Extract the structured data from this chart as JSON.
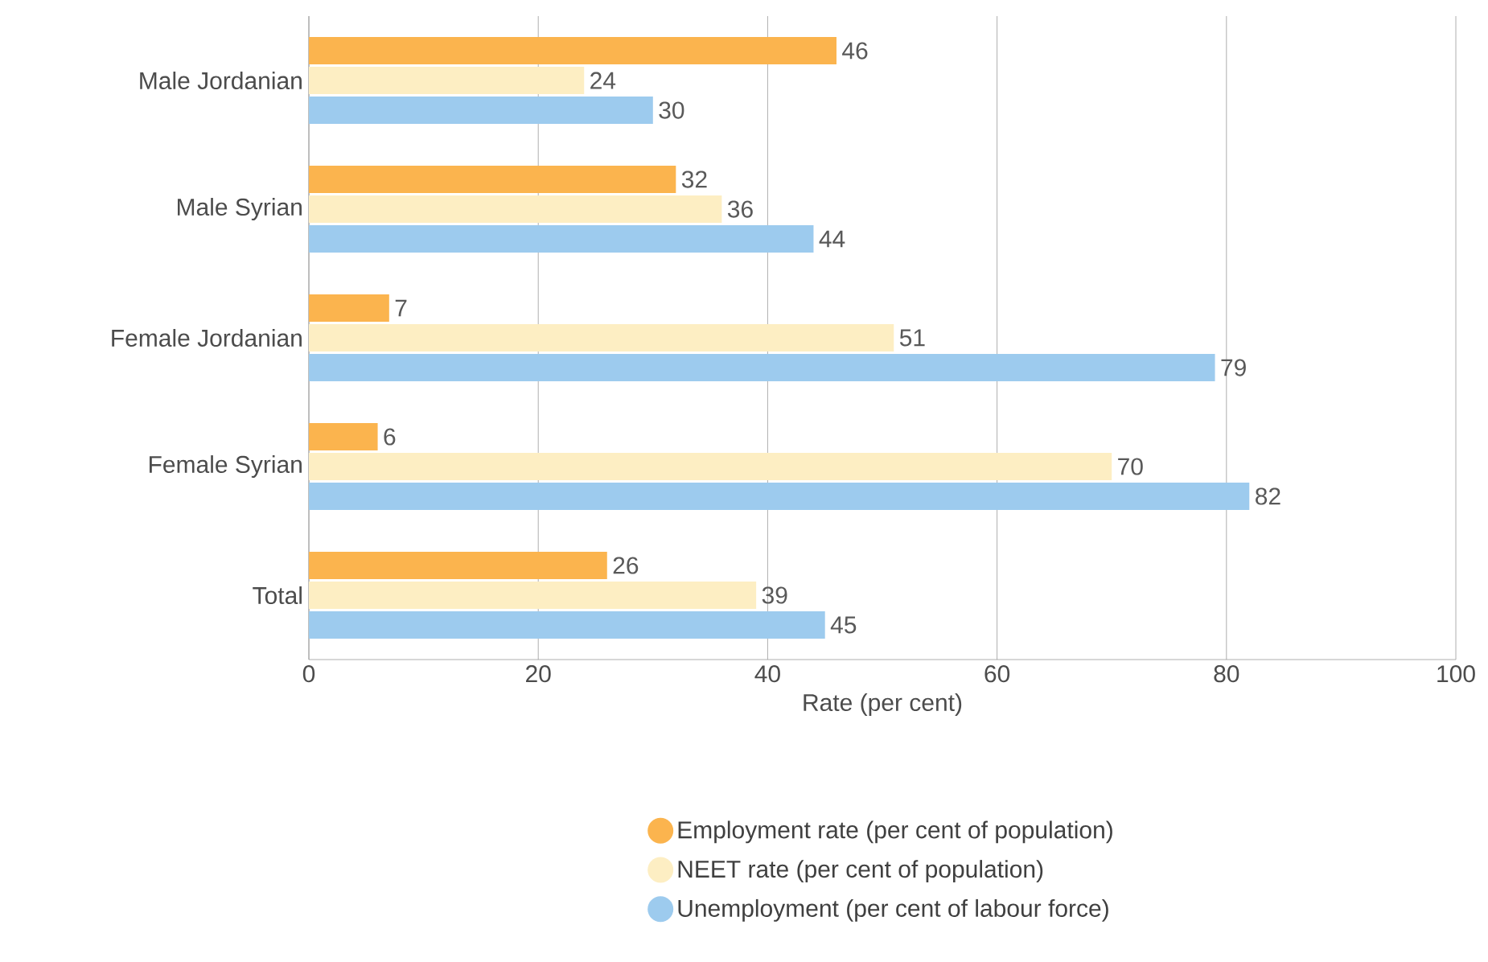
{
  "chart_data": {
    "type": "bar",
    "orientation": "horizontal",
    "xlabel": "Rate (per cent)",
    "categories": [
      "Male Jordanian",
      "Male Syrian",
      "Female Jordanian",
      "Female Syrian",
      "Total"
    ],
    "series": [
      {
        "name": "Employment rate (per cent of population)",
        "color": "#fbb44e",
        "values": [
          46,
          32,
          7,
          6,
          26
        ]
      },
      {
        "name": "NEET rate (per cent of population)",
        "color": "#fdeec3",
        "values": [
          24,
          36,
          51,
          70,
          39
        ]
      },
      {
        "name": "Unemployment (per cent of labour force)",
        "color": "#9dcbee",
        "values": [
          30,
          44,
          79,
          82,
          45
        ]
      }
    ],
    "xlim": [
      0,
      100
    ],
    "xticks": [
      0,
      20,
      40,
      60,
      80,
      100
    ],
    "grid": "x",
    "legend": "bottom",
    "data_labels": true
  }
}
